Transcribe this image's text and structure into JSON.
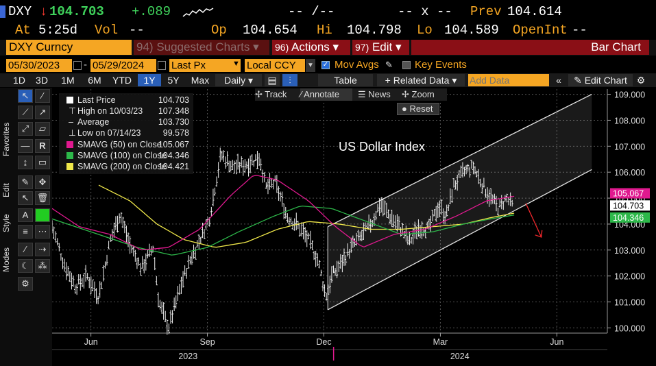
{
  "quote": {
    "ticker": "DXY",
    "arrow": "↓",
    "last": "104.703",
    "change": "+.089",
    "bid_ask": "-- /--",
    "size": "-- x --",
    "prev_label": "Prev",
    "prev": "104.614",
    "at_label": "At",
    "time": "5:25d",
    "vol_label": "Vol",
    "vol": "--",
    "op_label": "Op",
    "open": "104.654",
    "hi_label": "Hi",
    "high": "104.798",
    "lo_label": "Lo",
    "low": "104.589",
    "oi_label": "OpenInt",
    "oi": "--"
  },
  "menubar": {
    "security": "DXY Curncy",
    "suggested_num": "94)",
    "suggested": "Suggested Charts ▾",
    "actions_num": "96)",
    "actions": "Actions ▾",
    "edit_num": "97)",
    "edit": "Edit ▾",
    "chart_type": "Bar Chart"
  },
  "settings": {
    "start_date": "05/30/2023",
    "end_date": "05/29/2024",
    "price_field": "Last Px",
    "currency": "Local CCY",
    "mov_avgs": "Mov Avgs",
    "key_events": "Key Events"
  },
  "toolbar": {
    "periods": [
      "1D",
      "3D",
      "1M",
      "6M",
      "YTD",
      "1Y",
      "5Y",
      "Max"
    ],
    "active_period": "1Y",
    "frequency": "Daily ▾",
    "table": "Table",
    "related_data": "+ Related Data ▾",
    "add_data_placeholder": "Add Data",
    "edit_chart": "Edit Chart"
  },
  "palette": {
    "favorites": "Favorites",
    "edit": "Edit",
    "style": "Style",
    "modes": "Modes"
  },
  "chart_tools": {
    "track": "Track",
    "annotate": "Annotate",
    "news": "News",
    "zoom": "Zoom",
    "reset": "Reset"
  },
  "legend": [
    {
      "label": "Last Price",
      "value": "104.703",
      "color": "#ffffff"
    },
    {
      "label": "High on 10/03/23",
      "value": "107.348",
      "color": ""
    },
    {
      "label": "Average",
      "value": "103.730",
      "color": ""
    },
    {
      "label": "Low on 07/14/23",
      "value": "99.578",
      "color": ""
    },
    {
      "label": "SMAVG (50)  on Close",
      "value": "105.067",
      "color": "#e0198f"
    },
    {
      "label": "SMAVG (100)  on Close",
      "value": "104.346",
      "color": "#2db84a"
    },
    {
      "label": "SMAVG (200)  on Close",
      "value": "104.421",
      "color": "#f0e84a"
    }
  ],
  "chart_data": {
    "type": "bar",
    "title": "US Dollar Index",
    "y_ticks": [
      "100.000",
      "101.000",
      "102.000",
      "103.000",
      "104.000",
      "105.000",
      "106.000",
      "107.000",
      "108.000",
      "109.000"
    ],
    "ylim": [
      99.8,
      109.2
    ],
    "x_month_labels": [
      "Jun",
      "Sep",
      "Dec",
      "Mar",
      "Jun"
    ],
    "x_month_positions": [
      1,
      4,
      7,
      10,
      13
    ],
    "x_year_labels": [
      "2023",
      "2024"
    ],
    "x_year_positions": [
      3.5,
      10.5
    ],
    "xlim": [
      0,
      14.3
    ],
    "price_tags": [
      {
        "value": "105.067",
        "y": 105.067,
        "color": "#e0198f"
      },
      {
        "value": "104.703",
        "y": 104.703,
        "color": "#ffffff"
      },
      {
        "value": "104.346",
        "y": 104.346,
        "color": "#2db84a"
      }
    ],
    "anchors": [
      [
        0,
        103.9
      ],
      [
        0.3,
        102.5
      ],
      [
        0.6,
        101.6
      ],
      [
        0.9,
        102.0
      ],
      [
        1.2,
        101.2
      ],
      [
        1.5,
        103.4
      ],
      [
        1.75,
        104.4
      ],
      [
        2.0,
        103.2
      ],
      [
        2.3,
        102.3
      ],
      [
        2.6,
        103.1
      ],
      [
        2.75,
        101.0
      ],
      [
        3.0,
        100.0
      ],
      [
        3.35,
        101.8
      ],
      [
        3.55,
        102.6
      ],
      [
        3.8,
        103.4
      ],
      [
        4.05,
        104.2
      ],
      [
        4.35,
        106.7
      ],
      [
        4.65,
        106.2
      ],
      [
        5.0,
        106.3
      ],
      [
        5.35,
        106.6
      ],
      [
        5.5,
        105.4
      ],
      [
        5.75,
        105.6
      ],
      [
        6.05,
        104.3
      ],
      [
        6.35,
        103.9
      ],
      [
        6.6,
        103.4
      ],
      [
        6.85,
        102.6
      ],
      [
        7.05,
        101.2
      ],
      [
        7.2,
        102.0
      ],
      [
        7.45,
        102.5
      ],
      [
        7.75,
        103.2
      ],
      [
        8.0,
        103.6
      ],
      [
        8.25,
        104.1
      ],
      [
        8.45,
        104.8
      ],
      [
        8.7,
        104.3
      ],
      [
        8.95,
        103.9
      ],
      [
        9.2,
        103.3
      ],
      [
        9.45,
        103.9
      ],
      [
        9.7,
        103.8
      ],
      [
        9.95,
        104.7
      ],
      [
        10.15,
        104.3
      ],
      [
        10.35,
        105.5
      ],
      [
        10.6,
        106.0
      ],
      [
        10.85,
        106.2
      ],
      [
        11.05,
        105.6
      ],
      [
        11.3,
        105.0
      ],
      [
        11.5,
        104.6
      ],
      [
        11.7,
        105.0
      ],
      [
        11.85,
        104.7
      ]
    ],
    "sma_50": [
      [
        0,
        104.6
      ],
      [
        0.7,
        103.9
      ],
      [
        1.5,
        103.6
      ],
      [
        2.3,
        103.0
      ],
      [
        3.0,
        103.1
      ],
      [
        3.8,
        103.8
      ],
      [
        4.6,
        105.1
      ],
      [
        5.2,
        105.9
      ],
      [
        5.8,
        105.7
      ],
      [
        6.6,
        104.9
      ],
      [
        7.3,
        103.9
      ],
      [
        8.0,
        103.1
      ],
      [
        8.8,
        103.6
      ],
      [
        9.6,
        103.8
      ],
      [
        10.4,
        104.3
      ],
      [
        11.2,
        104.9
      ],
      [
        11.9,
        105.07
      ]
    ],
    "sma_100": [
      [
        0,
        104.2
      ],
      [
        1.2,
        103.6
      ],
      [
        2.2,
        103.1
      ],
      [
        3.1,
        102.8
      ],
      [
        4.0,
        103.1
      ],
      [
        4.8,
        103.7
      ],
      [
        5.7,
        104.3
      ],
      [
        6.4,
        104.7
      ],
      [
        7.2,
        104.6
      ],
      [
        8.1,
        104.1
      ],
      [
        9.0,
        103.6
      ],
      [
        9.8,
        103.7
      ],
      [
        10.6,
        104.0
      ],
      [
        11.3,
        104.2
      ],
      [
        11.9,
        104.35
      ]
    ],
    "sma_200": [
      [
        1.2,
        105.5
      ],
      [
        2.0,
        104.9
      ],
      [
        2.7,
        104.0
      ],
      [
        3.4,
        103.4
      ],
      [
        4.2,
        103.1
      ],
      [
        5.0,
        103.3
      ],
      [
        5.8,
        103.8
      ],
      [
        6.6,
        104.1
      ],
      [
        7.4,
        104.0
      ],
      [
        8.2,
        103.8
      ],
      [
        9.0,
        103.8
      ],
      [
        9.8,
        103.9
      ],
      [
        10.6,
        104.0
      ],
      [
        11.3,
        104.25
      ],
      [
        11.9,
        104.42
      ]
    ],
    "channel_lower": [
      [
        7.1,
        100.7
      ],
      [
        13.9,
        106.1
      ]
    ],
    "channel_upper": [
      [
        7.1,
        103.9
      ],
      [
        13.9,
        109.0
      ]
    ],
    "projection_arrow": [
      [
        12.2,
        104.8
      ],
      [
        12.6,
        103.5
      ]
    ]
  }
}
